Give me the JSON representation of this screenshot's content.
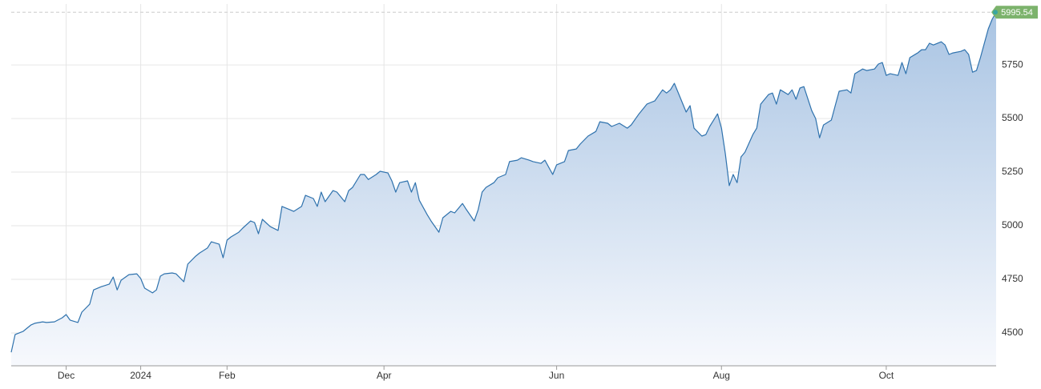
{
  "chart_data": {
    "type": "area",
    "color": "#2f72ad",
    "fill_top": "#a9c4e3",
    "fill_bottom": "#f7f9fd",
    "badge_color": "#7cb36c",
    "grid": true,
    "xlim": [
      0,
      251
    ],
    "xticks": [
      {
        "value": 14,
        "label": "Dec"
      },
      {
        "value": 33,
        "label": "2024"
      },
      {
        "value": 55,
        "label": "Feb"
      },
      {
        "value": 95,
        "label": "Apr"
      },
      {
        "value": 139,
        "label": "Jun"
      },
      {
        "value": 181,
        "label": "Aug"
      },
      {
        "value": 223,
        "label": "Oct"
      }
    ],
    "ylim": [
      4347,
      6034
    ],
    "yticks": [
      4500,
      4750,
      5000,
      5250,
      5500,
      5750
    ],
    "last_value": 5995.54,
    "x": [
      0,
      1,
      3,
      5,
      6,
      8,
      9,
      11,
      13,
      14,
      15,
      17,
      18,
      20,
      21,
      23,
      25,
      26,
      27,
      28,
      30,
      32,
      33,
      34,
      36,
      37,
      38,
      39,
      41,
      42,
      44,
      45,
      47,
      48,
      50,
      51,
      53,
      54,
      55,
      56,
      58,
      59,
      61,
      62,
      63,
      64,
      66,
      68,
      69,
      71,
      72,
      74,
      75,
      77,
      78,
      79,
      80,
      82,
      83,
      85,
      86,
      87,
      89,
      90,
      91,
      93,
      94,
      96,
      97,
      98,
      99,
      101,
      102,
      103,
      104,
      106,
      107,
      109,
      110,
      112,
      113,
      115,
      116,
      118,
      119,
      120,
      121,
      123,
      124,
      126,
      127,
      129,
      130,
      132,
      133,
      135,
      136,
      138,
      139,
      141,
      142,
      144,
      145,
      147,
      149,
      150,
      152,
      153,
      155,
      157,
      158,
      160,
      162,
      163,
      164,
      166,
      167,
      168,
      169,
      171,
      172,
      173,
      174,
      176,
      177,
      178,
      180,
      181,
      182,
      183,
      184,
      185,
      186,
      187,
      189,
      190,
      191,
      193,
      194,
      195,
      196,
      198,
      199,
      200,
      201,
      202,
      204,
      205,
      206,
      207,
      209,
      210,
      211,
      213,
      214,
      215,
      217,
      218,
      220,
      221,
      222,
      223,
      224,
      226,
      227,
      228,
      229,
      231,
      232,
      233,
      234,
      235,
      237,
      238,
      239,
      240,
      242,
      243,
      244,
      245,
      246,
      247,
      249,
      250,
      251
    ],
    "values": [
      4410,
      4493,
      4507,
      4537,
      4545,
      4552,
      4549,
      4552,
      4571,
      4586,
      4560,
      4549,
      4597,
      4634,
      4701,
      4716,
      4728,
      4761,
      4701,
      4746,
      4772,
      4776,
      4754,
      4709,
      4687,
      4701,
      4765,
      4776,
      4780,
      4776,
      4739,
      4821,
      4858,
      4873,
      4896,
      4925,
      4914,
      4851,
      4933,
      4948,
      4970,
      4989,
      5022,
      5015,
      4963,
      5030,
      4996,
      4978,
      5090,
      5075,
      5067,
      5090,
      5142,
      5127,
      5090,
      5157,
      5112,
      5164,
      5157,
      5112,
      5164,
      5179,
      5239,
      5239,
      5216,
      5239,
      5254,
      5246,
      5209,
      5157,
      5201,
      5209,
      5157,
      5201,
      5119,
      5052,
      5022,
      4970,
      5037,
      5067,
      5060,
      5104,
      5075,
      5022,
      5075,
      5157,
      5179,
      5201,
      5224,
      5239,
      5299,
      5306,
      5317,
      5306,
      5299,
      5291,
      5306,
      5239,
      5284,
      5299,
      5351,
      5358,
      5381,
      5418,
      5440,
      5485,
      5478,
      5463,
      5478,
      5455,
      5470,
      5522,
      5567,
      5575,
      5582,
      5634,
      5619,
      5634,
      5664,
      5575,
      5530,
      5560,
      5455,
      5418,
      5425,
      5463,
      5522,
      5455,
      5336,
      5187,
      5239,
      5201,
      5321,
      5343,
      5425,
      5455,
      5567,
      5612,
      5619,
      5567,
      5634,
      5612,
      5634,
      5590,
      5642,
      5649,
      5537,
      5500,
      5410,
      5470,
      5493,
      5560,
      5627,
      5634,
      5619,
      5709,
      5731,
      5724,
      5731,
      5754,
      5761,
      5701,
      5709,
      5701,
      5761,
      5709,
      5784,
      5806,
      5821,
      5821,
      5851,
      5843,
      5858,
      5843,
      5799,
      5806,
      5813,
      5821,
      5799,
      5716,
      5724,
      5784,
      5918,
      5963,
      5995.54
    ]
  }
}
